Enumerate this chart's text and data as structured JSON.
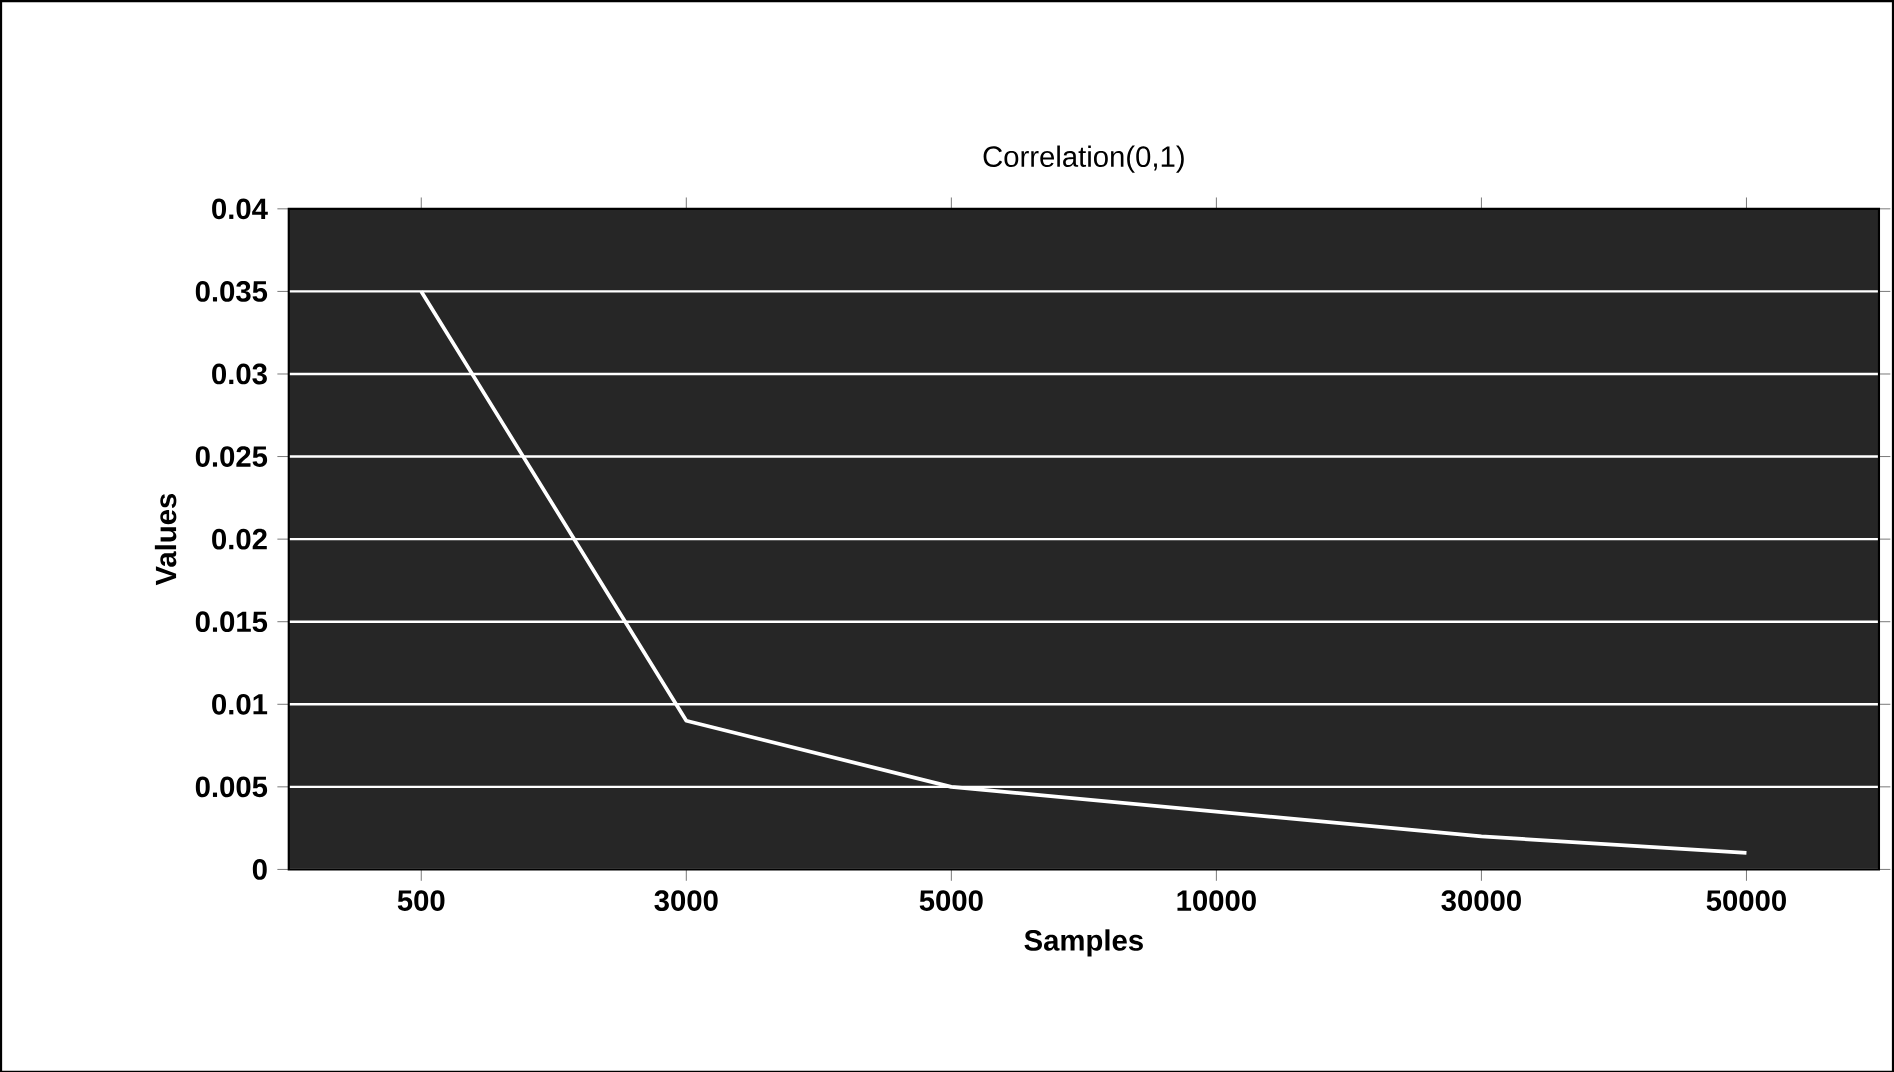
{
  "chart_data": {
    "type": "line",
    "title": "Correlation(0,1)",
    "xlabel": "Samples",
    "ylabel": "Values",
    "categories": [
      "500",
      "3000",
      "5000",
      "10000",
      "30000",
      "50000"
    ],
    "series": [
      {
        "color": "#ffffff",
        "values": [
          0.035,
          0.009,
          0.005,
          0.0035,
          0.002,
          0.001
        ]
      }
    ],
    "ylim": [
      0,
      0.04
    ],
    "yticks": [
      0,
      0.005,
      0.01,
      0.015,
      0.02,
      0.025,
      0.03,
      0.035,
      0.04
    ],
    "grid": "y",
    "legend": false,
    "marker": "none",
    "line_style": "solid"
  }
}
